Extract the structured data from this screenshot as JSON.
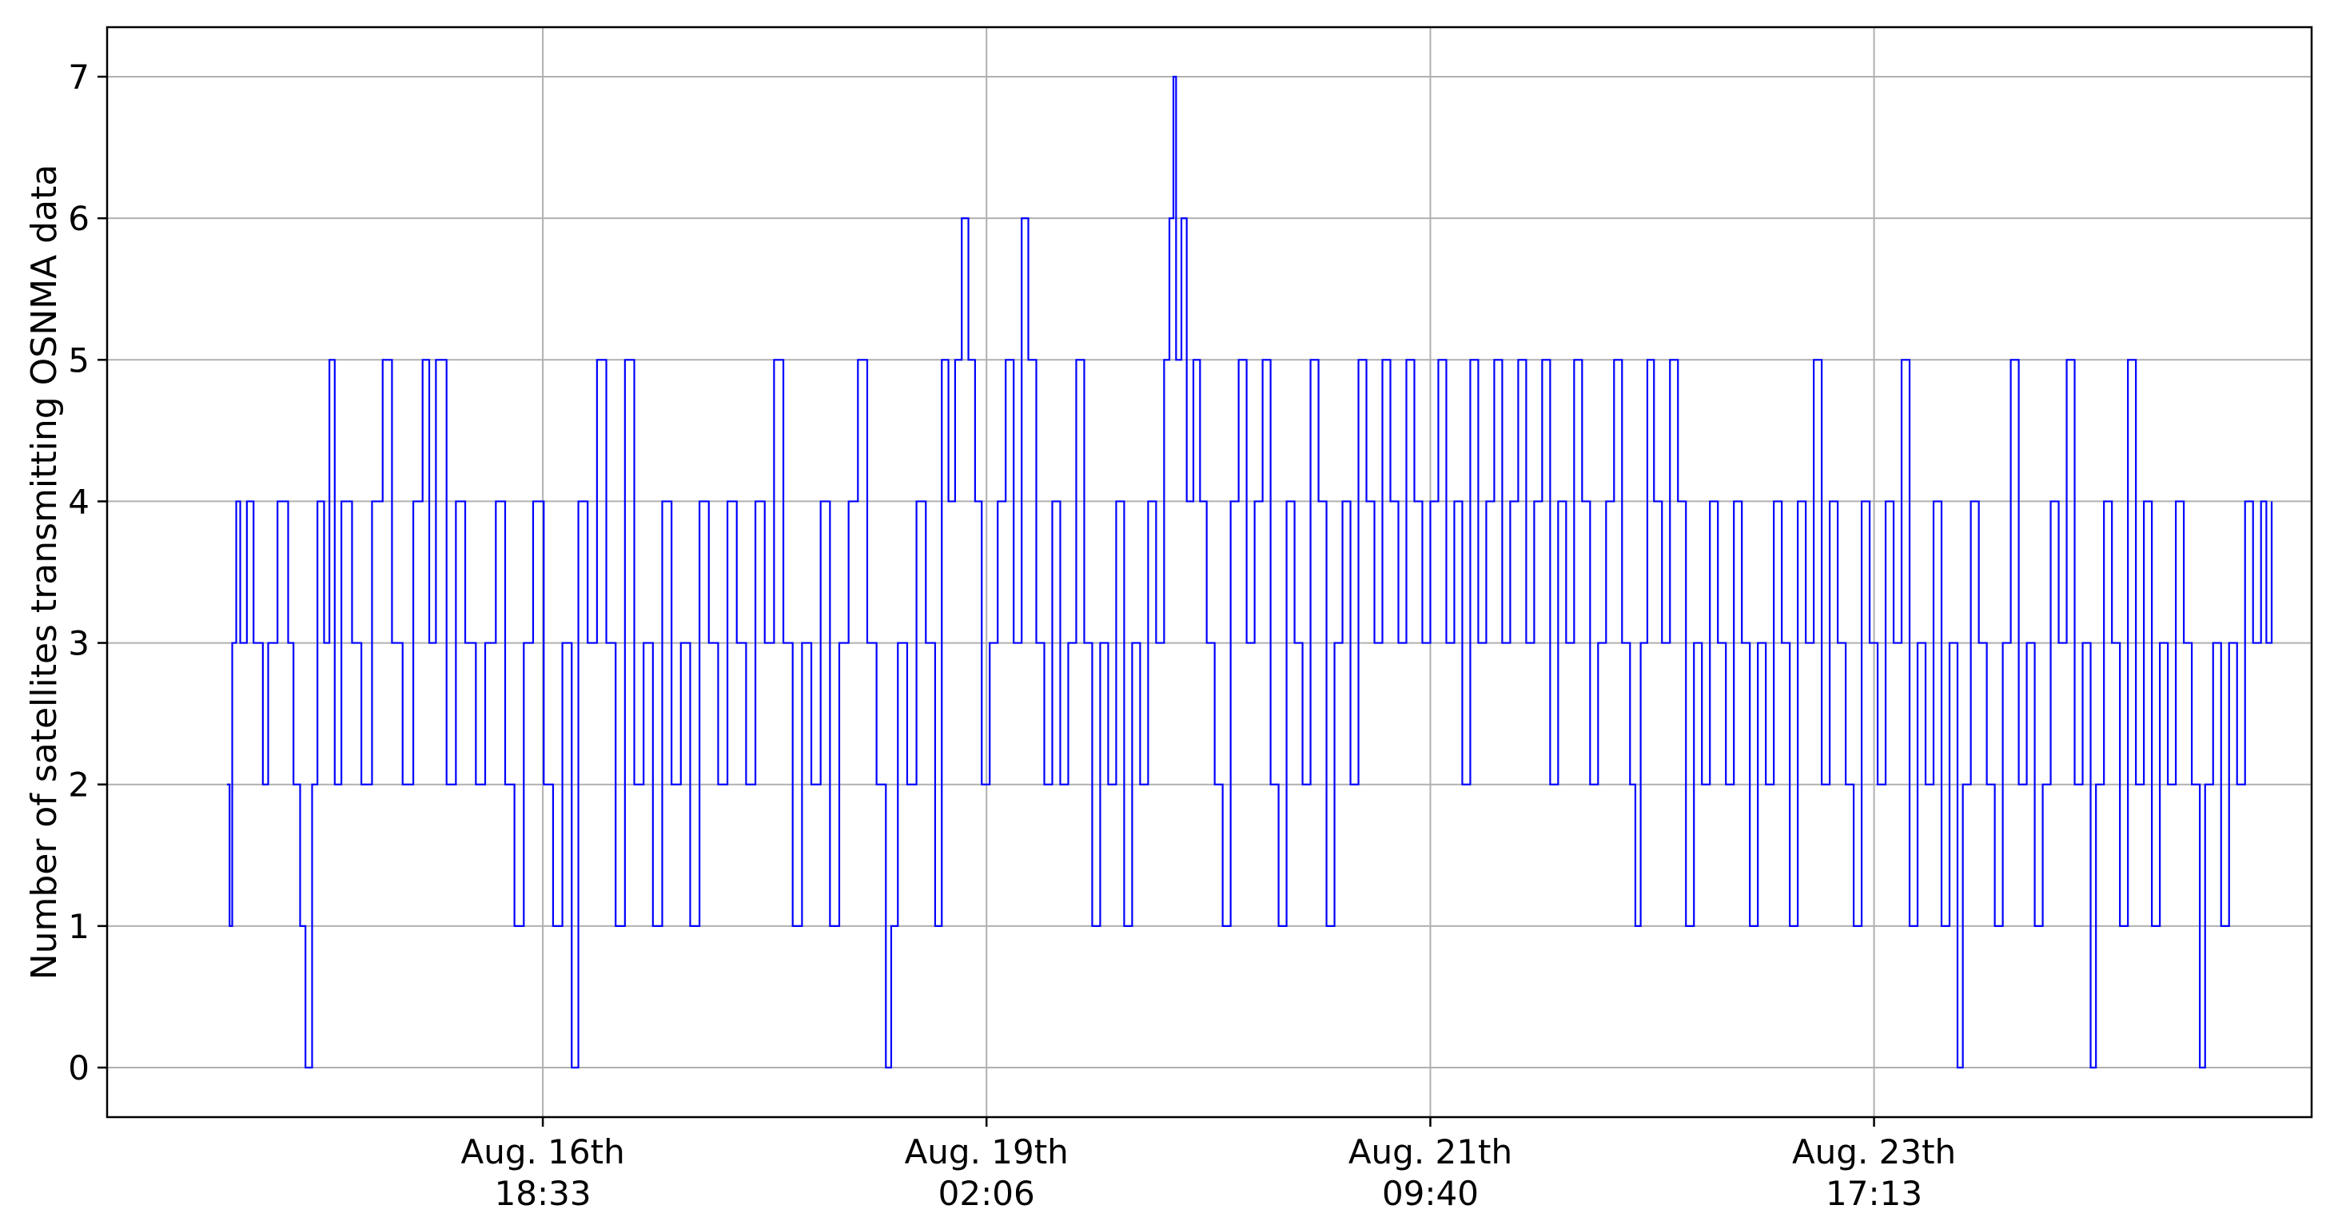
{
  "chart_data": {
    "type": "line",
    "title": "",
    "xlabel": "",
    "ylabel": "Number of satellites transmitting OSNMA data",
    "grid": true,
    "ylim": [
      -0.35,
      7.35
    ],
    "xlim": [
      "2024-08-14T12:00",
      "2024-08-26T00:00"
    ],
    "yticks": [
      0,
      1,
      2,
      3,
      4,
      5,
      6,
      7
    ],
    "xticks": [
      {
        "t": "2024-08-16T18:33",
        "line1": "Aug. 16th",
        "line2": "18:33"
      },
      {
        "t": "2024-08-19T02:06",
        "line1": "Aug. 19th",
        "line2": "02:06"
      },
      {
        "t": "2024-08-21T09:40",
        "line1": "Aug. 21th",
        "line2": "09:40"
      },
      {
        "t": "2024-08-23T17:13",
        "line1": "Aug. 23th",
        "line2": "17:13"
      }
    ],
    "series": [
      {
        "color": "#0000ff",
        "step": true,
        "points": [
          [
            "2024-08-15T03:00",
            2
          ],
          [
            "2024-08-15T03:20",
            1
          ],
          [
            "2024-08-15T03:40",
            3
          ],
          [
            "2024-08-15T04:10",
            4
          ],
          [
            "2024-08-15T04:40",
            3
          ],
          [
            "2024-08-15T05:30",
            4
          ],
          [
            "2024-08-15T06:20",
            3
          ],
          [
            "2024-08-15T07:30",
            2
          ],
          [
            "2024-08-15T08:10",
            3
          ],
          [
            "2024-08-15T09:20",
            4
          ],
          [
            "2024-08-15T10:40",
            3
          ],
          [
            "2024-08-15T11:20",
            2
          ],
          [
            "2024-08-15T12:10",
            1
          ],
          [
            "2024-08-15T12:50",
            0
          ],
          [
            "2024-08-15T13:40",
            2
          ],
          [
            "2024-08-15T14:20",
            4
          ],
          [
            "2024-08-15T15:10",
            3
          ],
          [
            "2024-08-15T15:50",
            5
          ],
          [
            "2024-08-15T16:30",
            2
          ],
          [
            "2024-08-15T17:20",
            4
          ],
          [
            "2024-08-15T18:40",
            3
          ],
          [
            "2024-08-15T19:50",
            2
          ],
          [
            "2024-08-15T21:10",
            4
          ],
          [
            "2024-08-15T22:30",
            5
          ],
          [
            "2024-08-15T23:40",
            3
          ],
          [
            "2024-08-16T01:00",
            2
          ],
          [
            "2024-08-16T02:20",
            4
          ],
          [
            "2024-08-16T03:30",
            5
          ],
          [
            "2024-08-16T04:20",
            3
          ],
          [
            "2024-08-16T05:10",
            5
          ],
          [
            "2024-08-16T06:30",
            2
          ],
          [
            "2024-08-16T07:40",
            4
          ],
          [
            "2024-08-16T08:50",
            3
          ],
          [
            "2024-08-16T10:10",
            2
          ],
          [
            "2024-08-16T11:20",
            3
          ],
          [
            "2024-08-16T12:40",
            4
          ],
          [
            "2024-08-16T13:50",
            2
          ],
          [
            "2024-08-16T15:00",
            1
          ],
          [
            "2024-08-16T16:10",
            3
          ],
          [
            "2024-08-16T17:20",
            4
          ],
          [
            "2024-08-16T18:40",
            2
          ],
          [
            "2024-08-16T19:50",
            1
          ],
          [
            "2024-08-16T21:00",
            3
          ],
          [
            "2024-08-16T22:10",
            0
          ],
          [
            "2024-08-16T23:00",
            4
          ],
          [
            "2024-08-17T00:10",
            3
          ],
          [
            "2024-08-17T01:20",
            5
          ],
          [
            "2024-08-17T02:30",
            3
          ],
          [
            "2024-08-17T03:40",
            1
          ],
          [
            "2024-08-17T04:50",
            5
          ],
          [
            "2024-08-17T06:00",
            2
          ],
          [
            "2024-08-17T07:10",
            3
          ],
          [
            "2024-08-17T08:20",
            1
          ],
          [
            "2024-08-17T09:30",
            4
          ],
          [
            "2024-08-17T10:40",
            2
          ],
          [
            "2024-08-17T11:50",
            3
          ],
          [
            "2024-08-17T13:00",
            1
          ],
          [
            "2024-08-17T14:10",
            4
          ],
          [
            "2024-08-17T15:20",
            3
          ],
          [
            "2024-08-17T16:30",
            2
          ],
          [
            "2024-08-17T17:40",
            4
          ],
          [
            "2024-08-17T18:50",
            3
          ],
          [
            "2024-08-17T20:00",
            2
          ],
          [
            "2024-08-17T21:10",
            4
          ],
          [
            "2024-08-17T22:20",
            3
          ],
          [
            "2024-08-17T23:30",
            5
          ],
          [
            "2024-08-18T00:40",
            3
          ],
          [
            "2024-08-18T01:50",
            1
          ],
          [
            "2024-08-18T03:00",
            3
          ],
          [
            "2024-08-18T04:10",
            2
          ],
          [
            "2024-08-18T05:20",
            4
          ],
          [
            "2024-08-18T06:30",
            1
          ],
          [
            "2024-08-18T07:40",
            3
          ],
          [
            "2024-08-18T08:50",
            4
          ],
          [
            "2024-08-18T10:00",
            5
          ],
          [
            "2024-08-18T11:10",
            3
          ],
          [
            "2024-08-18T12:20",
            2
          ],
          [
            "2024-08-18T13:30",
            0
          ],
          [
            "2024-08-18T14:10",
            1
          ],
          [
            "2024-08-18T15:00",
            3
          ],
          [
            "2024-08-18T16:10",
            2
          ],
          [
            "2024-08-18T17:20",
            4
          ],
          [
            "2024-08-18T18:30",
            3
          ],
          [
            "2024-08-18T19:40",
            1
          ],
          [
            "2024-08-18T20:30",
            5
          ],
          [
            "2024-08-18T21:20",
            4
          ],
          [
            "2024-08-18T22:10",
            5
          ],
          [
            "2024-08-18T23:00",
            6
          ],
          [
            "2024-08-18T23:50",
            5
          ],
          [
            "2024-08-19T00:40",
            4
          ],
          [
            "2024-08-19T01:30",
            2
          ],
          [
            "2024-08-19T02:30",
            3
          ],
          [
            "2024-08-19T03:30",
            4
          ],
          [
            "2024-08-19T04:30",
            5
          ],
          [
            "2024-08-19T05:30",
            3
          ],
          [
            "2024-08-19T06:30",
            6
          ],
          [
            "2024-08-19T07:20",
            5
          ],
          [
            "2024-08-19T08:20",
            3
          ],
          [
            "2024-08-19T09:20",
            2
          ],
          [
            "2024-08-19T10:20",
            4
          ],
          [
            "2024-08-19T11:20",
            2
          ],
          [
            "2024-08-19T12:20",
            3
          ],
          [
            "2024-08-19T13:20",
            5
          ],
          [
            "2024-08-19T14:20",
            3
          ],
          [
            "2024-08-19T15:20",
            1
          ],
          [
            "2024-08-19T16:20",
            3
          ],
          [
            "2024-08-19T17:20",
            2
          ],
          [
            "2024-08-19T18:20",
            4
          ],
          [
            "2024-08-19T19:20",
            1
          ],
          [
            "2024-08-19T20:20",
            3
          ],
          [
            "2024-08-19T21:20",
            2
          ],
          [
            "2024-08-19T22:20",
            4
          ],
          [
            "2024-08-19T23:20",
            3
          ],
          [
            "2024-08-20T00:20",
            5
          ],
          [
            "2024-08-20T01:00",
            6
          ],
          [
            "2024-08-20T01:30",
            7
          ],
          [
            "2024-08-20T01:50",
            5
          ],
          [
            "2024-08-20T02:30",
            6
          ],
          [
            "2024-08-20T03:10",
            4
          ],
          [
            "2024-08-20T04:00",
            5
          ],
          [
            "2024-08-20T04:50",
            4
          ],
          [
            "2024-08-20T05:40",
            3
          ],
          [
            "2024-08-20T06:40",
            2
          ],
          [
            "2024-08-20T07:40",
            1
          ],
          [
            "2024-08-20T08:40",
            4
          ],
          [
            "2024-08-20T09:40",
            5
          ],
          [
            "2024-08-20T10:40",
            3
          ],
          [
            "2024-08-20T11:40",
            4
          ],
          [
            "2024-08-20T12:40",
            5
          ],
          [
            "2024-08-20T13:40",
            2
          ],
          [
            "2024-08-20T14:40",
            1
          ],
          [
            "2024-08-20T15:40",
            4
          ],
          [
            "2024-08-20T16:40",
            3
          ],
          [
            "2024-08-20T17:40",
            2
          ],
          [
            "2024-08-20T18:40",
            5
          ],
          [
            "2024-08-20T19:40",
            4
          ],
          [
            "2024-08-20T20:40",
            1
          ],
          [
            "2024-08-20T21:40",
            3
          ],
          [
            "2024-08-20T22:40",
            4
          ],
          [
            "2024-08-20T23:40",
            2
          ],
          [
            "2024-08-21T00:40",
            5
          ],
          [
            "2024-08-21T01:40",
            4
          ],
          [
            "2024-08-21T02:40",
            3
          ],
          [
            "2024-08-21T03:40",
            5
          ],
          [
            "2024-08-21T04:40",
            4
          ],
          [
            "2024-08-21T05:40",
            3
          ],
          [
            "2024-08-21T06:40",
            5
          ],
          [
            "2024-08-21T07:40",
            4
          ],
          [
            "2024-08-21T08:40",
            3
          ],
          [
            "2024-08-21T09:40",
            4
          ],
          [
            "2024-08-21T10:40",
            5
          ],
          [
            "2024-08-21T11:40",
            3
          ],
          [
            "2024-08-21T12:40",
            4
          ],
          [
            "2024-08-21T13:40",
            2
          ],
          [
            "2024-08-21T14:40",
            5
          ],
          [
            "2024-08-21T15:40",
            3
          ],
          [
            "2024-08-21T16:40",
            4
          ],
          [
            "2024-08-21T17:40",
            5
          ],
          [
            "2024-08-21T18:40",
            3
          ],
          [
            "2024-08-21T19:40",
            4
          ],
          [
            "2024-08-21T20:40",
            5
          ],
          [
            "2024-08-21T21:40",
            3
          ],
          [
            "2024-08-21T22:40",
            4
          ],
          [
            "2024-08-21T23:40",
            5
          ],
          [
            "2024-08-22T00:40",
            2
          ],
          [
            "2024-08-22T01:40",
            4
          ],
          [
            "2024-08-22T02:40",
            3
          ],
          [
            "2024-08-22T03:40",
            5
          ],
          [
            "2024-08-22T04:40",
            4
          ],
          [
            "2024-08-22T05:40",
            2
          ],
          [
            "2024-08-22T06:40",
            3
          ],
          [
            "2024-08-22T07:40",
            4
          ],
          [
            "2024-08-22T08:40",
            5
          ],
          [
            "2024-08-22T09:40",
            3
          ],
          [
            "2024-08-22T10:40",
            2
          ],
          [
            "2024-08-22T11:20",
            1
          ],
          [
            "2024-08-22T12:00",
            3
          ],
          [
            "2024-08-22T12:50",
            5
          ],
          [
            "2024-08-22T13:40",
            4
          ],
          [
            "2024-08-22T14:40",
            3
          ],
          [
            "2024-08-22T15:40",
            5
          ],
          [
            "2024-08-22T16:40",
            4
          ],
          [
            "2024-08-22T17:40",
            1
          ],
          [
            "2024-08-22T18:40",
            3
          ],
          [
            "2024-08-22T19:40",
            2
          ],
          [
            "2024-08-22T20:40",
            4
          ],
          [
            "2024-08-22T21:40",
            3
          ],
          [
            "2024-08-22T22:40",
            2
          ],
          [
            "2024-08-22T23:40",
            4
          ],
          [
            "2024-08-23T00:40",
            3
          ],
          [
            "2024-08-23T01:40",
            1
          ],
          [
            "2024-08-23T02:40",
            3
          ],
          [
            "2024-08-23T03:40",
            2
          ],
          [
            "2024-08-23T04:40",
            4
          ],
          [
            "2024-08-23T05:40",
            3
          ],
          [
            "2024-08-23T06:40",
            1
          ],
          [
            "2024-08-23T07:40",
            4
          ],
          [
            "2024-08-23T08:40",
            3
          ],
          [
            "2024-08-23T09:40",
            5
          ],
          [
            "2024-08-23T10:40",
            2
          ],
          [
            "2024-08-23T11:40",
            4
          ],
          [
            "2024-08-23T12:40",
            3
          ],
          [
            "2024-08-23T13:40",
            2
          ],
          [
            "2024-08-23T14:40",
            1
          ],
          [
            "2024-08-23T15:40",
            4
          ],
          [
            "2024-08-23T16:40",
            3
          ],
          [
            "2024-08-23T17:40",
            2
          ],
          [
            "2024-08-23T18:40",
            4
          ],
          [
            "2024-08-23T19:40",
            3
          ],
          [
            "2024-08-23T20:40",
            5
          ],
          [
            "2024-08-23T21:40",
            1
          ],
          [
            "2024-08-23T22:40",
            3
          ],
          [
            "2024-08-23T23:40",
            2
          ],
          [
            "2024-08-24T00:40",
            4
          ],
          [
            "2024-08-24T01:40",
            1
          ],
          [
            "2024-08-24T02:40",
            3
          ],
          [
            "2024-08-24T03:40",
            0
          ],
          [
            "2024-08-24T04:20",
            2
          ],
          [
            "2024-08-24T05:20",
            4
          ],
          [
            "2024-08-24T06:20",
            3
          ],
          [
            "2024-08-24T07:20",
            2
          ],
          [
            "2024-08-24T08:20",
            1
          ],
          [
            "2024-08-24T09:20",
            3
          ],
          [
            "2024-08-24T10:20",
            5
          ],
          [
            "2024-08-24T11:20",
            2
          ],
          [
            "2024-08-24T12:20",
            3
          ],
          [
            "2024-08-24T13:20",
            1
          ],
          [
            "2024-08-24T14:20",
            2
          ],
          [
            "2024-08-24T15:20",
            4
          ],
          [
            "2024-08-24T16:20",
            3
          ],
          [
            "2024-08-24T17:20",
            5
          ],
          [
            "2024-08-24T18:20",
            2
          ],
          [
            "2024-08-24T19:20",
            3
          ],
          [
            "2024-08-24T20:20",
            0
          ],
          [
            "2024-08-24T21:00",
            2
          ],
          [
            "2024-08-24T22:00",
            4
          ],
          [
            "2024-08-24T23:00",
            3
          ],
          [
            "2024-08-25T00:00",
            1
          ],
          [
            "2024-08-25T01:00",
            5
          ],
          [
            "2024-08-25T02:00",
            2
          ],
          [
            "2024-08-25T03:00",
            4
          ],
          [
            "2024-08-25T04:00",
            1
          ],
          [
            "2024-08-25T05:00",
            3
          ],
          [
            "2024-08-25T06:00",
            2
          ],
          [
            "2024-08-25T07:00",
            4
          ],
          [
            "2024-08-25T08:00",
            3
          ],
          [
            "2024-08-25T09:00",
            2
          ],
          [
            "2024-08-25T10:00",
            0
          ],
          [
            "2024-08-25T10:40",
            2
          ],
          [
            "2024-08-25T11:40",
            3
          ],
          [
            "2024-08-25T12:40",
            1
          ],
          [
            "2024-08-25T13:40",
            3
          ],
          [
            "2024-08-25T14:40",
            2
          ],
          [
            "2024-08-25T15:40",
            4
          ],
          [
            "2024-08-25T16:40",
            3
          ],
          [
            "2024-08-25T17:40",
            4
          ],
          [
            "2024-08-25T18:20",
            3
          ],
          [
            "2024-08-25T19:00",
            4
          ]
        ]
      }
    ]
  }
}
